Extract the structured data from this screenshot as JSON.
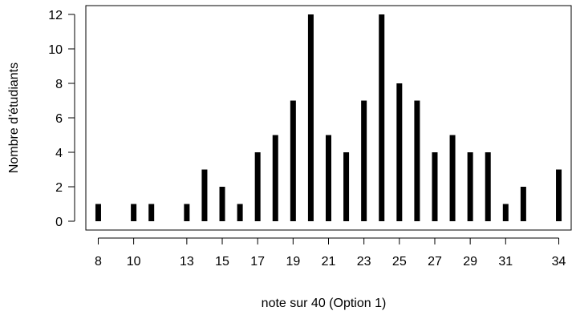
{
  "chart_data": {
    "type": "bar",
    "xlabel": "note sur 40 (Option 1)",
    "ylabel": "Nombre d'étudiants",
    "ylim": [
      0,
      12
    ],
    "yticks": [
      0,
      2,
      4,
      6,
      8,
      10,
      12
    ],
    "xticks": [
      8,
      10,
      13,
      15,
      17,
      19,
      21,
      23,
      25,
      27,
      29,
      31,
      34
    ],
    "x": [
      8,
      10,
      11,
      13,
      14,
      15,
      16,
      17,
      18,
      19,
      20,
      21,
      22,
      23,
      24,
      25,
      26,
      27,
      28,
      29,
      30,
      31,
      32,
      34
    ],
    "values": [
      1,
      1,
      1,
      1,
      3,
      2,
      1,
      4,
      5,
      7,
      12,
      5,
      4,
      7,
      12,
      8,
      7,
      4,
      5,
      4,
      4,
      1,
      2,
      3
    ],
    "grid": false,
    "color": "#000000"
  }
}
